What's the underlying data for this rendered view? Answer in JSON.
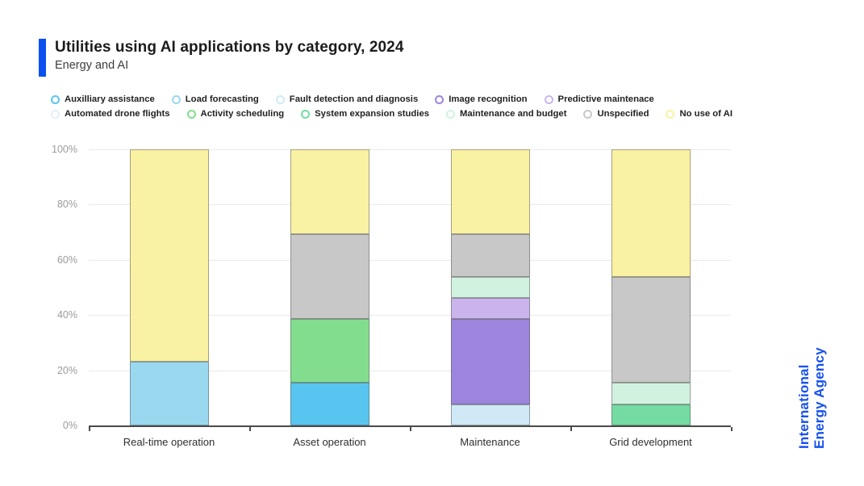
{
  "header": {
    "title": "Utilities using AI applications by category, 2024",
    "subtitle": "Energy and AI",
    "accent_color": "#0C50F2"
  },
  "branding": {
    "line1": "International",
    "line2": "Energy Agency",
    "color": "#1651F0"
  },
  "chart_data": {
    "type": "bar",
    "stacked": true,
    "title": "Utilities using AI applications by category, 2024",
    "xlabel": "",
    "ylabel": "",
    "ylim": [
      0,
      100
    ],
    "yticks": [
      0,
      20,
      40,
      60,
      80,
      100
    ],
    "ytick_labels": [
      "0%",
      "20%",
      "40%",
      "60%",
      "80%",
      "100%"
    ],
    "grid": true,
    "legend_position": "top",
    "categories": [
      "Real-time operation",
      "Asset operation",
      "Maintenance",
      "Grid development"
    ],
    "series": [
      {
        "name": "Auxilliary assistance",
        "color": "#58C5F0",
        "values": [
          0,
          15.4,
          0,
          0
        ]
      },
      {
        "name": "Load forecasting",
        "color": "#9AD8F0",
        "values": [
          23.1,
          0,
          0,
          0
        ]
      },
      {
        "name": "Fault detection and diagnosis",
        "color": "#CFE9F6",
        "values": [
          0,
          0,
          7.7,
          0
        ]
      },
      {
        "name": "Image recognition",
        "color": "#9C85DC",
        "values": [
          0,
          0,
          30.8,
          0
        ]
      },
      {
        "name": "Predictive maintenace",
        "color": "#CBB4EC",
        "values": [
          0,
          0,
          7.7,
          0
        ]
      },
      {
        "name": "Automated drone flights",
        "color": "#E3F1F8",
        "values": [
          0,
          0,
          0,
          0
        ]
      },
      {
        "name": "Activity scheduling",
        "color": "#82DE8E",
        "values": [
          0,
          23.1,
          0,
          0
        ]
      },
      {
        "name": "System expansion studies",
        "color": "#74DBA2",
        "values": [
          0,
          0,
          0,
          7.7
        ]
      },
      {
        "name": "Maintenance and budget",
        "color": "#D2F2E0",
        "values": [
          0,
          0,
          7.7,
          7.7
        ]
      },
      {
        "name": "Unspecified",
        "color": "#C8C8C8",
        "values": [
          0,
          30.8,
          15.4,
          38.5
        ]
      },
      {
        "name": "No use of AI",
        "color": "#FAF2A3",
        "values": [
          76.9,
          30.8,
          30.8,
          46.2
        ]
      }
    ],
    "legend_rows": [
      [
        0,
        1,
        2,
        3,
        4
      ],
      [
        5,
        6,
        7,
        8,
        9,
        10
      ]
    ]
  }
}
